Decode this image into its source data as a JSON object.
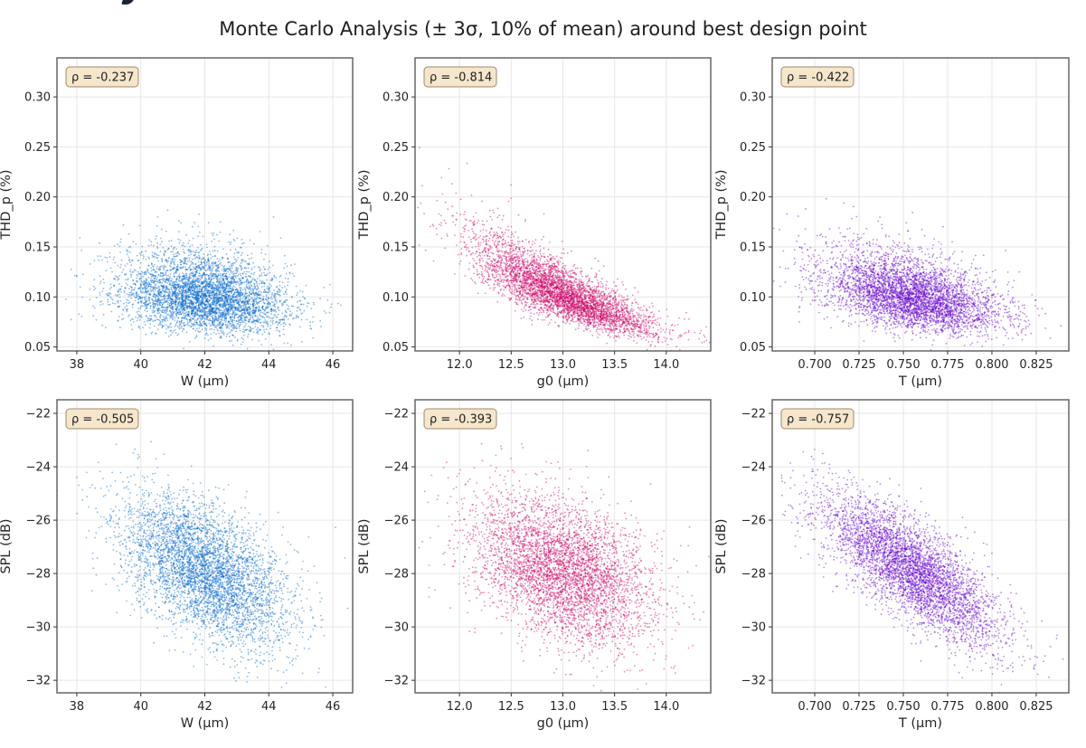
{
  "chart_data": {
    "type": "scatter",
    "title": "Monte Carlo Analysis (± 3σ, 10% of mean) around best design point",
    "layout": "2 rows × 3 columns",
    "grid": true,
    "annotation_box": "top-left",
    "colors": {
      "W": "#0066cc",
      "g0": "#cc0066",
      "T": "#6600cc",
      "rho_box_fill": "#f5e6cc",
      "rho_box_edge": "#a08a6a",
      "grid": "#e6e6e6",
      "axes_edge": "#666666"
    },
    "panels": [
      {
        "id": "thd-vs-w",
        "row": 0,
        "col": 0,
        "xvar": "W",
        "xlabel": "W (µm)",
        "ylabel": "THD_p (%)",
        "rho": -0.237,
        "rho_label": "ρ = -0.237",
        "xlim": [
          37.38,
          46.62
        ],
        "ylim": [
          0.046,
          0.339
        ],
        "xticks": [
          38,
          40,
          42,
          44,
          46
        ],
        "xtick_labels": [
          "38",
          "40",
          "42",
          "44",
          "46"
        ],
        "yticks": [
          0.05,
          0.1,
          0.15,
          0.2,
          0.25,
          0.3
        ],
        "ytick_labels": [
          "0.05",
          "0.10",
          "0.15",
          "0.20",
          "0.25",
          "0.30"
        ],
        "x_mean": 42.0,
        "x_sd": 1.3,
        "y_mean": 0.102,
        "y_sd": 0.021,
        "y_min": 0.058,
        "skew": 0.9,
        "curve": 0
      },
      {
        "id": "thd-vs-g0",
        "row": 0,
        "col": 1,
        "xvar": "g0",
        "xlabel": "g0 (µm)",
        "ylabel": "THD_p (%)",
        "rho": -0.814,
        "rho_label": "ρ = -0.814",
        "xlim": [
          11.57,
          14.43
        ],
        "ylim": [
          0.046,
          0.339
        ],
        "xticks": [
          12.0,
          12.5,
          13.0,
          13.5,
          14.0
        ],
        "xtick_labels": [
          "12.0",
          "12.5",
          "13.0",
          "13.5",
          "14.0"
        ],
        "yticks": [
          0.05,
          0.1,
          0.15,
          0.2,
          0.25,
          0.3
        ],
        "ytick_labels": [
          "0.05",
          "0.10",
          "0.15",
          "0.20",
          "0.25",
          "0.30"
        ],
        "x_mean": 13.0,
        "x_sd": 0.43,
        "y_mean": 0.102,
        "y_sd": 0.021,
        "y_min": 0.058,
        "skew": 0.9,
        "curve": 1
      },
      {
        "id": "thd-vs-t",
        "row": 0,
        "col": 2,
        "xvar": "T",
        "xlabel": "T (µm)",
        "ylabel": "THD_p (%)",
        "rho": -0.422,
        "rho_label": "ρ = -0.422",
        "xlim": [
          0.676,
          0.8434
        ],
        "ylim": [
          0.046,
          0.339
        ],
        "xticks": [
          0.7,
          0.725,
          0.75,
          0.775,
          0.8,
          0.825
        ],
        "xtick_labels": [
          "0.700",
          "0.725",
          "0.750",
          "0.775",
          "0.800",
          "0.825"
        ],
        "yticks": [
          0.05,
          0.1,
          0.15,
          0.2,
          0.25,
          0.3
        ],
        "ytick_labels": [
          "0.05",
          "0.10",
          "0.15",
          "0.20",
          "0.25",
          "0.30"
        ],
        "x_mean": 0.755,
        "x_sd": 0.025,
        "y_mean": 0.102,
        "y_sd": 0.021,
        "y_min": 0.058,
        "skew": 0.9,
        "curve": 0
      },
      {
        "id": "spl-vs-w",
        "row": 1,
        "col": 0,
        "xvar": "W",
        "xlabel": "W (µm)",
        "ylabel": "SPL (dB)",
        "rho": -0.505,
        "rho_label": "ρ = -0.505",
        "xlim": [
          37.38,
          46.62
        ],
        "ylim": [
          -32.47,
          -21.49
        ],
        "xticks": [
          38,
          40,
          42,
          44,
          46
        ],
        "xtick_labels": [
          "38",
          "40",
          "42",
          "44",
          "46"
        ],
        "yticks": [
          -32,
          -30,
          -28,
          -26,
          -24,
          -22
        ],
        "ytick_labels": [
          "−32",
          "−30",
          "−28",
          "−26",
          "−24",
          "−22"
        ],
        "x_mean": 42.0,
        "x_sd": 1.3,
        "y_mean": -27.9,
        "y_sd": 1.4,
        "skew": 0,
        "curve": 0
      },
      {
        "id": "spl-vs-g0",
        "row": 1,
        "col": 1,
        "xvar": "g0",
        "xlabel": "g0 (µm)",
        "ylabel": "SPL (dB)",
        "rho": -0.393,
        "rho_label": "ρ = -0.393",
        "xlim": [
          11.57,
          14.43
        ],
        "ylim": [
          -32.47,
          -21.49
        ],
        "xticks": [
          12.0,
          12.5,
          13.0,
          13.5,
          14.0
        ],
        "xtick_labels": [
          "12.0",
          "12.5",
          "13.0",
          "13.5",
          "14.0"
        ],
        "yticks": [
          -32,
          -30,
          -28,
          -26,
          -24,
          -22
        ],
        "ytick_labels": [
          "−32",
          "−30",
          "−28",
          "−26",
          "−24",
          "−22"
        ],
        "x_mean": 13.0,
        "x_sd": 0.43,
        "y_mean": -27.9,
        "y_sd": 1.4,
        "skew": 0,
        "curve": 0
      },
      {
        "id": "spl-vs-t",
        "row": 1,
        "col": 2,
        "xvar": "T",
        "xlabel": "T (µm)",
        "ylabel": "SPL (dB)",
        "rho": -0.757,
        "rho_label": "ρ = -0.757",
        "xlim": [
          0.676,
          0.8434
        ],
        "ylim": [
          -32.47,
          -21.49
        ],
        "xticks": [
          0.7,
          0.725,
          0.75,
          0.775,
          0.8,
          0.825
        ],
        "xtick_labels": [
          "0.700",
          "0.725",
          "0.750",
          "0.775",
          "0.800",
          "0.825"
        ],
        "yticks": [
          -32,
          -30,
          -28,
          -26,
          -24,
          -22
        ],
        "ytick_labels": [
          "−32",
          "−30",
          "−28",
          "−26",
          "−24",
          "−22"
        ],
        "x_mean": 0.755,
        "x_sd": 0.025,
        "y_mean": -27.9,
        "y_sd": 1.4,
        "skew": 0,
        "curve": 0
      }
    ],
    "n_samples_per_panel": 10000
  }
}
